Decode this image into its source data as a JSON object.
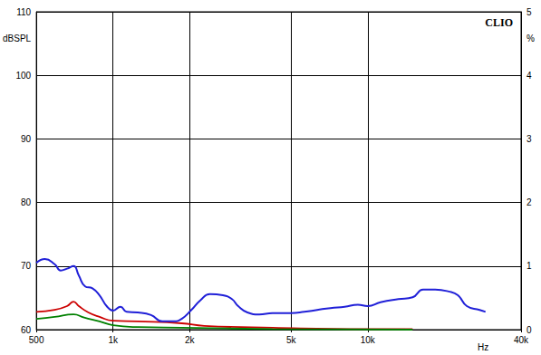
{
  "chart_data": {
    "type": "line",
    "title": "CLIO",
    "x_label": "Hz",
    "y_label": "dBSPL",
    "y2_label": "%",
    "log": "x",
    "grid": true,
    "xlim": [
      500,
      40000
    ],
    "xticks": [
      500,
      {
        "value": 1000,
        "label": "1k"
      },
      {
        "value": 2000,
        "label": "2k"
      },
      {
        "value": 5000,
        "label": "5k"
      },
      {
        "value": 10000,
        "label": "10k"
      },
      {
        "value": 40000,
        "label": "40k"
      }
    ],
    "ylim": [
      60,
      110
    ],
    "yticks": [
      60,
      70,
      80,
      90,
      100,
      110
    ],
    "y2lim": [
      0,
      5
    ],
    "y2ticks": [
      0,
      1,
      2,
      3,
      4,
      5
    ],
    "series": [
      {
        "color": "#2020d8",
        "x": [
          500,
          540,
          590,
          623,
          660,
          700,
          734,
          777,
          830,
          885,
          944,
          1000,
          1070,
          1130,
          1250,
          1410,
          1560,
          1730,
          1860,
          2030,
          2200,
          2400,
          2700,
          2930,
          3100,
          3370,
          3750,
          4230,
          5000,
          5640,
          6330,
          7140,
          8120,
          9150,
          10000,
          11220,
          13200,
          15000,
          16500,
          18400,
          20800,
          22600,
          24500,
          27500,
          29000
        ],
        "values": [
          70.5,
          71.1,
          70.3,
          69.3,
          69.6,
          70.0,
          68.5,
          66.8,
          66.5,
          65.4,
          63.7,
          63.0,
          63.6,
          62.8,
          62.7,
          62.3,
          61.3,
          61.3,
          61.7,
          63.1,
          64.6,
          65.6,
          65.4,
          64.8,
          63.7,
          62.7,
          62.4,
          62.6,
          62.6,
          62.8,
          63.1,
          63.4,
          63.6,
          63.9,
          63.7,
          64.3,
          64.8,
          65.1,
          66.3,
          66.3,
          66.0,
          65.4,
          63.7,
          63.1,
          62.8
        ]
      },
      {
        "color": "#cc0000",
        "axis": "y2",
        "x": [
          500,
          590,
          660,
          700,
          734,
          800,
          885,
          1000,
          1250,
          1860,
          2280,
          4230,
          10000,
          15000
        ],
        "values": [
          0.28,
          0.31,
          0.37,
          0.44,
          0.37,
          0.27,
          0.2,
          0.14,
          0.13,
          0.1,
          0.06,
          0.03,
          0.01,
          0.01
        ]
      },
      {
        "color": "#008000",
        "axis": "y2",
        "x": [
          500,
          590,
          700,
          770,
          885,
          1000,
          1250,
          1860,
          4230,
          15000
        ],
        "values": [
          0.17,
          0.2,
          0.24,
          0.19,
          0.13,
          0.07,
          0.04,
          0.03,
          0.01,
          0.0
        ]
      }
    ]
  }
}
